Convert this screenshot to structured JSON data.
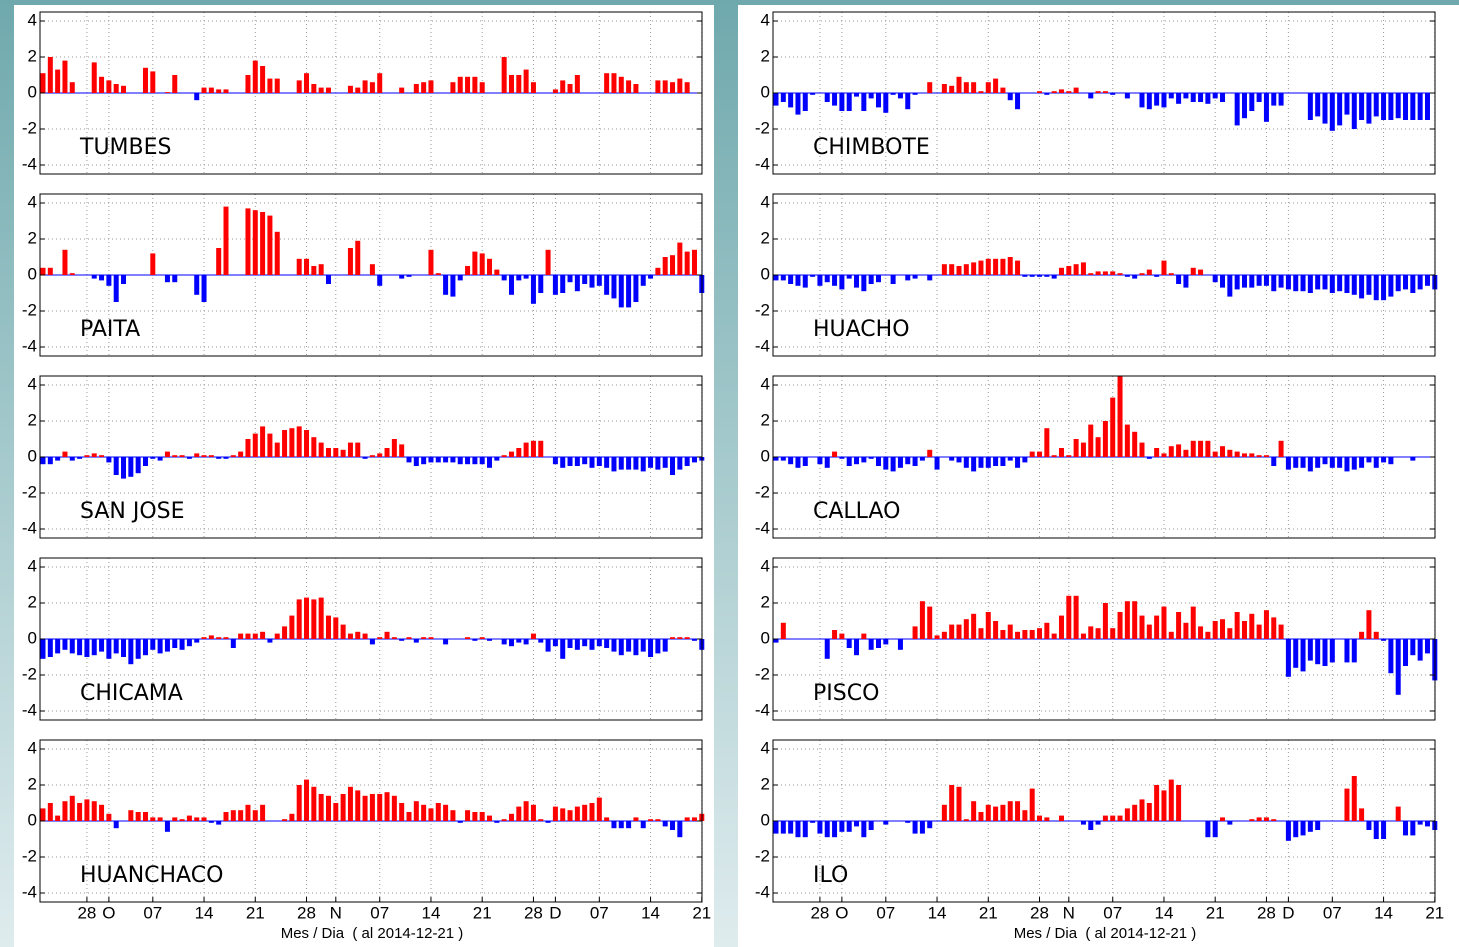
{
  "chart_data": {
    "type": "bar",
    "xlabel": "Mes / Dia  ( al 2014-12-21 )",
    "categories": [
      null,
      null,
      null,
      null,
      null,
      null,
      "28",
      null,
      null,
      "O",
      null,
      null,
      null,
      null,
      null,
      "07",
      null,
      null,
      null,
      null,
      null,
      null,
      "14",
      null,
      null,
      null,
      null,
      null,
      null,
      "21",
      null,
      null,
      null,
      null,
      null,
      null,
      "28",
      null,
      null,
      null,
      "N",
      null,
      null,
      null,
      null,
      null,
      "07",
      null,
      null,
      null,
      null,
      null,
      null,
      "14",
      null,
      null,
      null,
      null,
      null,
      null,
      "21",
      null,
      null,
      null,
      null,
      null,
      null,
      "28",
      null,
      null,
      "D",
      null,
      null,
      null,
      null,
      null,
      "07",
      null,
      null,
      null,
      null,
      null,
      null,
      "14",
      null,
      null,
      null,
      null,
      null,
      null,
      "21"
    ],
    "ylim": [
      -4.5,
      4.5
    ],
    "yticks": [
      -4,
      -2,
      0,
      2,
      4
    ],
    "grid": true,
    "positive_color": "#ff0000",
    "negative_color": "#0000ff",
    "panels": [
      {
        "label": "TUMBES",
        "values": [
          1.1,
          2.0,
          1.3,
          1.8,
          0.6,
          null,
          null,
          1.7,
          0.9,
          0.7,
          0.5,
          0.4,
          null,
          null,
          1.4,
          1.2,
          null,
          0.05,
          1.0,
          null,
          null,
          -0.4,
          0.3,
          0.3,
          0.2,
          0.2,
          null,
          null,
          1.0,
          1.8,
          1.5,
          0.8,
          0.8,
          null,
          null,
          0.7,
          1.1,
          0.5,
          0.3,
          0.3,
          null,
          null,
          0.4,
          0.3,
          0.7,
          0.6,
          1.1,
          null,
          null,
          0.3,
          null,
          0.5,
          0.6,
          0.7,
          null,
          null,
          0.6,
          0.9,
          0.9,
          0.9,
          0.6,
          null,
          null,
          2.0,
          1.0,
          1.0,
          1.3,
          0.6,
          null,
          null,
          0.2,
          0.7,
          0.5,
          1.0,
          null,
          null,
          null,
          1.1,
          1.1,
          0.9,
          0.7,
          0.5,
          null,
          null,
          0.7,
          0.7,
          0.6,
          0.8,
          0.6,
          null,
          null
        ]
      },
      {
        "label": "PAITA",
        "values": [
          0.4,
          0.4,
          null,
          1.4,
          0.1,
          null,
          null,
          -0.2,
          -0.3,
          -0.6,
          -1.5,
          -0.5,
          null,
          null,
          null,
          1.2,
          null,
          -0.4,
          -0.4,
          null,
          null,
          -1.1,
          -1.5,
          null,
          1.5,
          3.8,
          null,
          null,
          3.7,
          3.6,
          3.5,
          3.3,
          2.4,
          null,
          null,
          0.9,
          0.9,
          0.5,
          0.6,
          -0.5,
          null,
          null,
          1.5,
          1.9,
          null,
          0.6,
          -0.6,
          null,
          null,
          -0.2,
          -0.1,
          null,
          null,
          1.4,
          0.1,
          -1.1,
          -1.2,
          -0.3,
          0.5,
          1.3,
          1.2,
          0.9,
          0.3,
          -0.3,
          -1.1,
          -0.3,
          -0.2,
          -1.6,
          -1.0,
          1.4,
          -1.1,
          -1.0,
          -0.4,
          -0.9,
          -0.5,
          -0.7,
          -0.6,
          -1.1,
          -1.3,
          -1.8,
          -1.8,
          -1.5,
          -0.6,
          -0.2,
          0.4,
          1.0,
          1.1,
          1.8,
          1.3,
          1.4,
          -1.0
        ]
      },
      {
        "label": "SAN JOSE",
        "values": [
          -0.4,
          -0.4,
          -0.2,
          0.3,
          -0.2,
          -0.1,
          0.1,
          0.2,
          0.1,
          -0.3,
          -1.0,
          -1.2,
          -1.1,
          -0.9,
          -0.5,
          -0.1,
          -0.2,
          0.3,
          0.1,
          0.1,
          -0.1,
          0.2,
          0.1,
          0.1,
          -0.1,
          -0.1,
          0.1,
          0.3,
          1.0,
          1.3,
          1.7,
          1.3,
          0.8,
          1.5,
          1.6,
          1.7,
          1.5,
          1.1,
          0.8,
          0.5,
          0.5,
          0.4,
          0.8,
          0.8,
          -0.1,
          0.1,
          0.2,
          0.5,
          1.0,
          0.7,
          -0.3,
          -0.5,
          -0.4,
          -0.3,
          -0.3,
          -0.3,
          -0.3,
          -0.4,
          -0.4,
          -0.4,
          -0.4,
          -0.6,
          -0.2,
          0.1,
          0.3,
          0.5,
          0.8,
          0.9,
          0.9,
          null,
          -0.4,
          -0.6,
          -0.5,
          -0.5,
          -0.4,
          -0.6,
          -0.5,
          -0.6,
          -0.8,
          -0.7,
          -0.7,
          -0.7,
          -0.8,
          -0.6,
          -0.7,
          -0.6,
          -1.0,
          -0.7,
          -0.5,
          -0.3,
          -0.2
        ]
      },
      {
        "label": "CHICAMA",
        "values": [
          -1.1,
          -1.0,
          -0.8,
          -0.6,
          -0.8,
          -0.9,
          -1.0,
          -0.9,
          -0.7,
          -1.1,
          -0.8,
          -1.0,
          -1.4,
          -1.1,
          -0.9,
          -0.6,
          -0.8,
          -0.7,
          -0.5,
          -0.6,
          -0.4,
          -0.2,
          0.1,
          0.2,
          0.1,
          0.1,
          -0.5,
          0.3,
          0.3,
          0.3,
          0.4,
          -0.2,
          0.3,
          0.7,
          1.3,
          2.2,
          2.3,
          2.2,
          2.3,
          1.3,
          1.2,
          0.8,
          0.3,
          0.4,
          0.3,
          -0.3,
          0.1,
          0.4,
          0.1,
          -0.1,
          0.1,
          -0.2,
          0.1,
          0.1,
          null,
          -0.3,
          null,
          null,
          0.1,
          -0.1,
          0.1,
          -0.1,
          null,
          -0.3,
          -0.4,
          -0.2,
          -0.3,
          0.3,
          -0.2,
          -0.7,
          -0.4,
          -1.1,
          -0.5,
          -0.6,
          -0.4,
          -0.6,
          -0.4,
          -0.5,
          -0.7,
          -0.9,
          -0.7,
          -0.9,
          -0.7,
          -1.0,
          -0.8,
          -0.7,
          0.1,
          0.1,
          0.1,
          -0.1,
          -0.6
        ]
      },
      {
        "label": "HUANCHACO",
        "values": [
          0.7,
          1.0,
          0.3,
          1.1,
          1.4,
          1.0,
          1.2,
          1.1,
          0.9,
          0.4,
          -0.4,
          null,
          0.6,
          0.5,
          0.5,
          0.2,
          0.2,
          -0.6,
          0.2,
          0.1,
          0.3,
          0.2,
          0.2,
          -0.1,
          -0.2,
          0.5,
          0.6,
          0.6,
          0.9,
          0.6,
          0.9,
          null,
          null,
          0.1,
          0.4,
          2.0,
          2.3,
          1.9,
          1.5,
          1.4,
          1.0,
          1.5,
          1.9,
          1.7,
          1.4,
          1.5,
          1.5,
          1.6,
          1.4,
          1.0,
          0.5,
          1.1,
          0.9,
          0.7,
          1.0,
          0.9,
          0.6,
          -0.1,
          0.6,
          0.5,
          0.5,
          0.3,
          -0.1,
          0.1,
          0.4,
          0.8,
          1.1,
          0.9,
          0.1,
          -0.1,
          0.8,
          0.7,
          0.6,
          0.8,
          0.9,
          1.0,
          1.3,
          0.2,
          -0.4,
          -0.4,
          -0.4,
          0.2,
          -0.4,
          0.1,
          0.1,
          -0.3,
          -0.5,
          -0.9,
          0.2,
          0.2,
          0.4
        ]
      },
      {
        "label": "CHIMBOTE",
        "values": [
          -0.7,
          -0.5,
          -0.8,
          -1.2,
          -1.0,
          -0.1,
          null,
          -0.5,
          -0.7,
          -1.0,
          -1.0,
          -0.2,
          -1.0,
          -0.3,
          -0.8,
          -1.1,
          -0.1,
          -0.3,
          -0.9,
          -0.1,
          null,
          0.6,
          null,
          0.5,
          0.4,
          0.9,
          0.6,
          0.6,
          0.1,
          0.6,
          0.8,
          0.3,
          -0.4,
          -0.9,
          null,
          null,
          0.1,
          -0.1,
          0.1,
          0.2,
          0.1,
          0.3,
          null,
          -0.3,
          0.1,
          0.1,
          -0.1,
          null,
          -0.3,
          null,
          -0.8,
          -0.9,
          -0.7,
          -0.8,
          -0.3,
          -0.6,
          -0.3,
          -0.5,
          -0.5,
          -0.6,
          -0.3,
          -0.5,
          null,
          -1.8,
          -1.4,
          -1.0,
          -0.5,
          -1.6,
          -0.7,
          -0.7,
          null,
          null,
          null,
          -1.5,
          -1.3,
          -1.7,
          -2.1,
          -1.8,
          -1.2,
          -2.0,
          -1.5,
          -1.7,
          -1.3,
          -1.5,
          -1.5,
          -1.4,
          -1.5,
          -1.5,
          -1.5,
          -1.5,
          null
        ]
      },
      {
        "label": "HUACHO",
        "values": [
          -0.3,
          -0.3,
          -0.5,
          -0.6,
          -0.7,
          -0.1,
          -0.6,
          -0.4,
          -0.6,
          -0.8,
          -0.2,
          -0.7,
          -0.9,
          -0.5,
          -0.4,
          null,
          -0.5,
          null,
          -0.3,
          -0.2,
          null,
          -0.3,
          null,
          0.6,
          0.6,
          0.5,
          0.6,
          0.7,
          0.8,
          0.9,
          0.9,
          0.9,
          1.0,
          0.8,
          -0.1,
          -0.1,
          -0.1,
          -0.1,
          -0.2,
          0.4,
          0.5,
          0.6,
          0.7,
          0.1,
          0.2,
          0.2,
          0.2,
          0.1,
          -0.1,
          -0.2,
          0.1,
          0.3,
          -0.1,
          0.8,
          0.1,
          -0.5,
          -0.7,
          0.4,
          0.3,
          null,
          -0.4,
          -0.7,
          -1.2,
          -0.8,
          -0.7,
          -0.7,
          -0.6,
          -0.6,
          -0.9,
          -0.7,
          -0.8,
          -0.9,
          -0.9,
          -1.0,
          -0.8,
          -0.8,
          -1.0,
          -0.9,
          -1.0,
          -1.1,
          -1.3,
          -1.1,
          -1.4,
          -1.4,
          -1.2,
          -0.9,
          -0.8,
          -1.0,
          -0.8,
          -0.6,
          -0.8
        ]
      },
      {
        "label": "CALLAO",
        "values": [
          -0.2,
          -0.2,
          -0.4,
          -0.6,
          -0.5,
          null,
          -0.4,
          -0.6,
          0.3,
          -0.1,
          -0.5,
          -0.4,
          -0.3,
          -0.1,
          -0.5,
          -0.7,
          -0.8,
          -0.6,
          -0.4,
          -0.5,
          -0.2,
          0.4,
          -0.7,
          null,
          -0.2,
          -0.3,
          -0.6,
          -0.8,
          -0.6,
          -0.6,
          -0.5,
          -0.5,
          -0.2,
          -0.6,
          -0.3,
          0.3,
          0.3,
          1.6,
          0.1,
          0.5,
          0.1,
          1.0,
          0.8,
          1.8,
          1.1,
          2.0,
          3.3,
          4.5,
          1.8,
          1.4,
          0.8,
          -0.1,
          0.5,
          0.2,
          0.6,
          0.7,
          0.4,
          0.9,
          0.9,
          0.9,
          0.3,
          0.6,
          0.4,
          0.3,
          0.2,
          0.2,
          0.1,
          0.1,
          -0.5,
          0.9,
          -0.7,
          -0.6,
          -0.6,
          -0.8,
          -0.6,
          -0.4,
          -0.6,
          -0.6,
          -0.8,
          -0.7,
          -0.6,
          -0.3,
          -0.6,
          -0.3,
          -0.4,
          null,
          null,
          -0.2,
          null,
          null,
          null
        ]
      },
      {
        "label": "PISCO",
        "values": [
          -0.2,
          0.9,
          null,
          null,
          null,
          null,
          null,
          -1.1,
          0.5,
          0.3,
          -0.5,
          -0.9,
          0.3,
          -0.6,
          -0.5,
          -0.3,
          null,
          -0.6,
          null,
          0.7,
          2.1,
          1.8,
          0.2,
          0.4,
          0.8,
          0.8,
          1.1,
          1.4,
          0.6,
          1.5,
          1.0,
          0.5,
          0.8,
          0.4,
          0.5,
          0.5,
          0.6,
          0.9,
          0.3,
          1.3,
          2.4,
          2.4,
          0.3,
          0.7,
          0.6,
          2.0,
          0.6,
          1.5,
          2.1,
          2.1,
          1.3,
          0.8,
          1.3,
          1.8,
          0.4,
          1.5,
          0.9,
          1.8,
          0.7,
          0.4,
          1.0,
          1.1,
          0.6,
          1.5,
          1.0,
          1.4,
          0.8,
          1.6,
          1.2,
          0.8,
          -2.1,
          -1.6,
          -1.8,
          -1.2,
          -1.4,
          -1.5,
          -1.3,
          null,
          -1.3,
          -1.3,
          0.4,
          1.6,
          0.4,
          -0.1,
          -1.9,
          -3.1,
          -1.5,
          -0.9,
          -1.2,
          -0.8,
          -2.3
        ]
      },
      {
        "label": "ILO",
        "values": [
          -0.7,
          -0.7,
          -0.7,
          -0.9,
          -0.9,
          -0.1,
          -0.7,
          -0.9,
          -0.9,
          -0.6,
          -0.6,
          -0.3,
          -0.9,
          -0.5,
          null,
          -0.2,
          null,
          null,
          -0.1,
          -0.7,
          -0.7,
          -0.4,
          null,
          0.9,
          2.0,
          1.9,
          0.1,
          1.1,
          0.5,
          0.9,
          0.8,
          0.9,
          1.1,
          1.1,
          0.6,
          1.8,
          0.3,
          0.2,
          null,
          0.3,
          null,
          null,
          -0.2,
          -0.5,
          -0.2,
          0.3,
          0.3,
          0.3,
          0.7,
          0.9,
          1.2,
          1.0,
          2.0,
          1.7,
          2.3,
          2.0,
          null,
          null,
          null,
          -0.9,
          -0.9,
          0.2,
          -0.2,
          null,
          null,
          0.1,
          0.2,
          0.2,
          0.1,
          null,
          -1.1,
          -0.9,
          -0.8,
          -0.6,
          -0.5,
          null,
          null,
          null,
          1.8,
          2.5,
          0.7,
          -0.5,
          -1.0,
          -1.0,
          null,
          0.8,
          -0.8,
          -0.8,
          -0.2,
          -0.3,
          -0.5
        ]
      }
    ]
  }
}
